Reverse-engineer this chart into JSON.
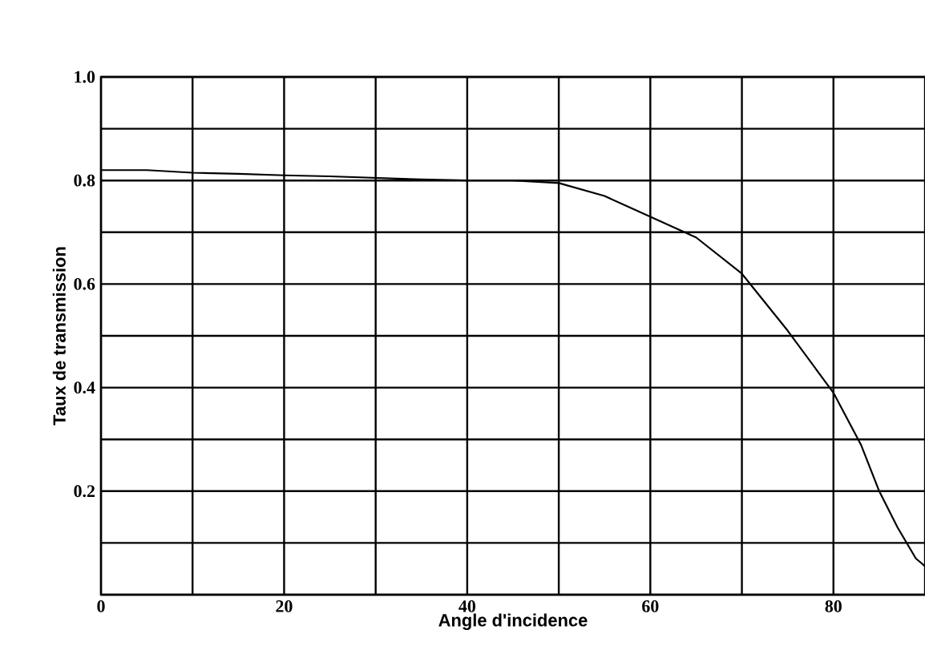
{
  "chart_data": {
    "type": "line",
    "xlabel": "Angle d'incidence",
    "ylabel": "Taux de transmission",
    "x": [
      0,
      5,
      10,
      15,
      20,
      25,
      30,
      35,
      40,
      45,
      50,
      55,
      60,
      65,
      70,
      75,
      80,
      83,
      85,
      87,
      89,
      90
    ],
    "series": [
      {
        "color": "#000000",
        "values": [
          0.82,
          0.82,
          0.815,
          0.813,
          0.81,
          0.808,
          0.805,
          0.802,
          0.8,
          0.8,
          0.795,
          0.77,
          0.73,
          0.69,
          0.62,
          0.51,
          0.39,
          0.29,
          0.2,
          0.13,
          0.07,
          0.055
        ]
      }
    ],
    "xlim": [
      0,
      90
    ],
    "ylim": [
      0,
      1.0
    ],
    "xticks": [
      0,
      {
        "value": 10,
        "label": null
      },
      20,
      {
        "value": 30,
        "label": null
      },
      40,
      {
        "value": 50,
        "label": null
      },
      60,
      {
        "value": 70,
        "label": null
      },
      80
    ],
    "yticks": [
      {
        "value": 0,
        "label": null
      },
      {
        "value": 0.1,
        "label": null
      },
      0.2,
      {
        "value": 0.3,
        "label": null
      },
      0.4,
      {
        "value": 0.5,
        "label": null
      },
      0.6,
      {
        "value": 0.7,
        "label": null
      },
      0.8,
      {
        "value": 0.9,
        "label": null
      },
      {
        "value": 1.0,
        "label": "1.0"
      }
    ],
    "grid": true,
    "marker": "none",
    "line_style": "solid"
  }
}
